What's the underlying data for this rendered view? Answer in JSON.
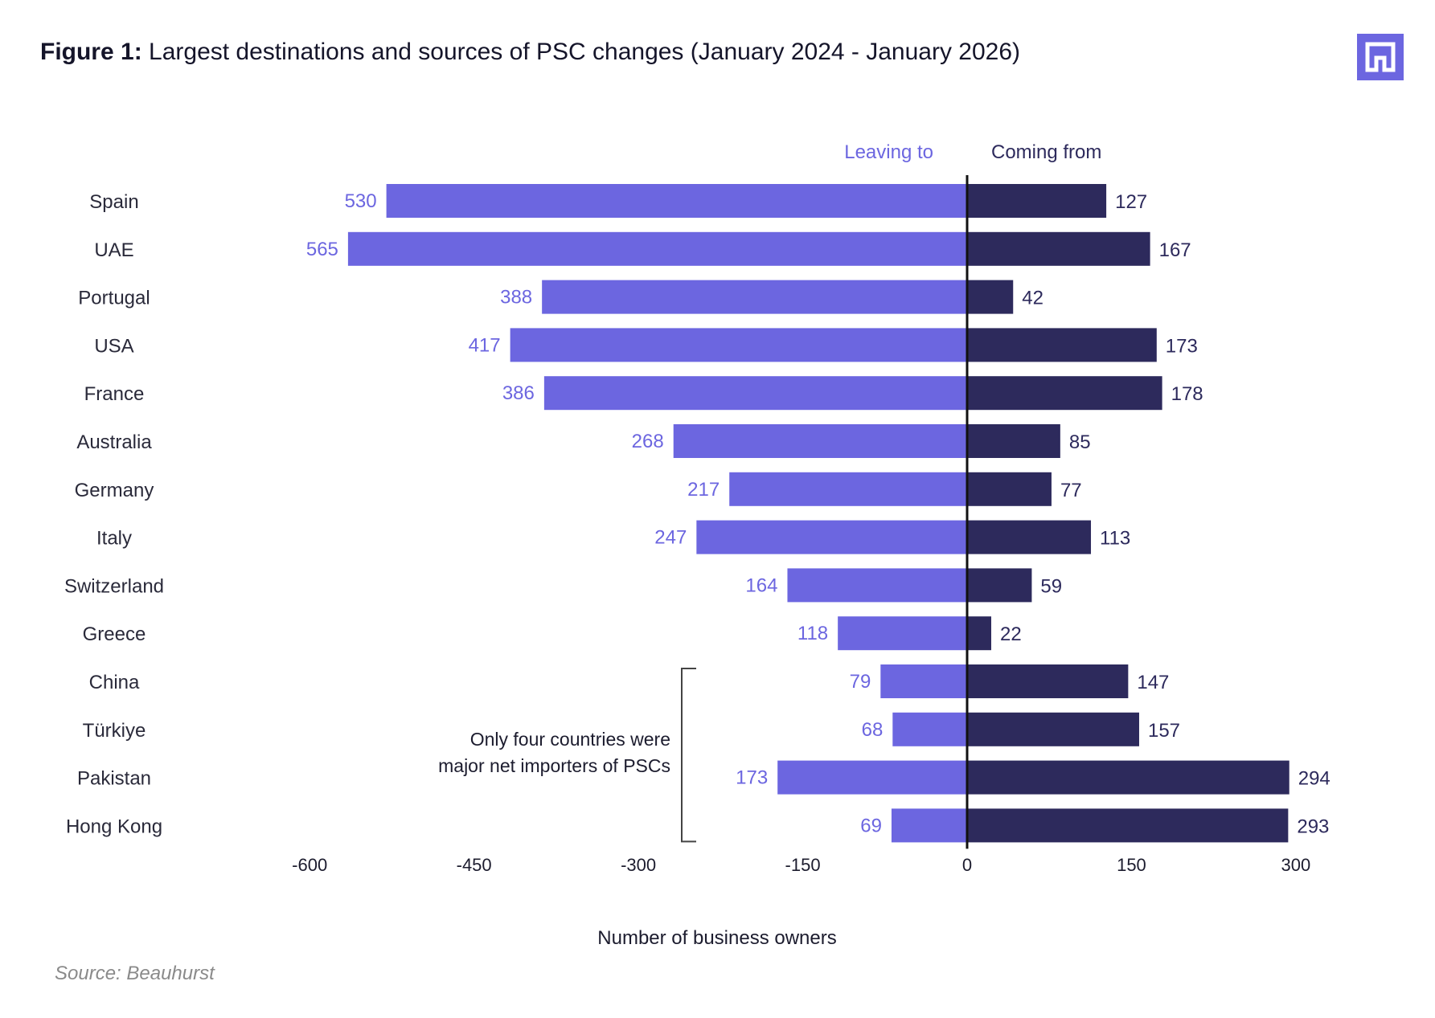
{
  "title": {
    "prefix": "Figure 1:",
    "text": "Largest destinations and sources of PSC changes (January 2024 - January 2026)"
  },
  "logo": {
    "icon": "beauhurst-logo-icon",
    "color": "#6c66e0"
  },
  "source": "Source: Beauhurst",
  "chart_data": {
    "type": "bar",
    "orientation": "horizontal-diverging",
    "categories": [
      "Spain",
      "UAE",
      "Portugal",
      "USA",
      "France",
      "Australia",
      "Germany",
      "Italy",
      "Switzerland",
      "Greece",
      "China",
      "Türkiye",
      "Pakistan",
      "Hong Kong"
    ],
    "series": [
      {
        "name": "Leaving to",
        "color": "#6c66e0",
        "direction": "negative",
        "values": [
          530,
          565,
          388,
          417,
          386,
          268,
          217,
          247,
          164,
          118,
          79,
          68,
          173,
          69
        ]
      },
      {
        "name": "Coming from",
        "color": "#2d2a5c",
        "direction": "positive",
        "values": [
          127,
          167,
          42,
          173,
          178,
          85,
          77,
          113,
          59,
          22,
          147,
          157,
          294,
          293
        ]
      }
    ],
    "xlim": [
      -600,
      300
    ],
    "xticks": [
      -600,
      -450,
      -300,
      -150,
      0,
      150,
      300
    ],
    "xlabel": "Number of business owners",
    "ylabel": "",
    "grid": false,
    "annotation": {
      "lines": [
        "Only four countries were",
        "major net importers of PSCs"
      ],
      "bracket_categories": [
        "China",
        "Türkiye",
        "Pakistan",
        "Hong Kong"
      ]
    }
  }
}
